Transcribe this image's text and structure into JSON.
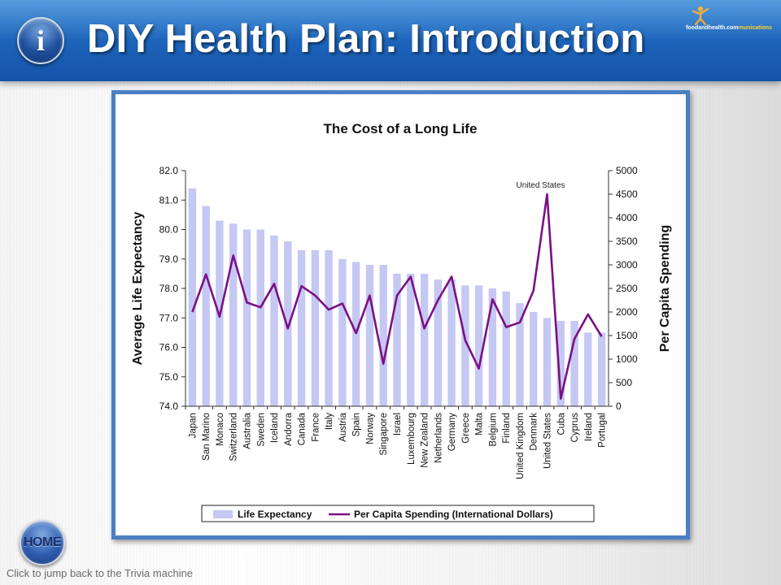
{
  "header": {
    "badge_letter": "i",
    "title": "DIY Health Plan: Introduction",
    "logo_text_a": "foodandhealth.com",
    "logo_text_b": "munications"
  },
  "footer": {
    "home_label": "HOME",
    "hint": "Click to jump back to the Trivia machine"
  },
  "colors": {
    "header": "#1d66bd",
    "frame": "#4a7fc4",
    "bar": "#c5c8f3",
    "line": "#7b1085",
    "logo_figure": "#f2a31c"
  },
  "chart_data": {
    "type": "bar",
    "title": "The Cost of a Long Life",
    "categories": [
      "Japan",
      "San Marino",
      "Monaco",
      "Switzerland",
      "Australia",
      "Sweden",
      "Iceland",
      "Andorra",
      "Canada",
      "France",
      "Italy",
      "Austria",
      "Spain",
      "Norway",
      "Singapore",
      "Israel",
      "Luxembourg",
      "New Zealand",
      "Netherlands",
      "Germany",
      "Greece",
      "Malta",
      "Belgium",
      "Finland",
      "United Kingdom",
      "Denmark",
      "United States",
      "Cuba",
      "Cyprus",
      "Ireland",
      "Portugal"
    ],
    "series": [
      {
        "name": "Life Expectancy",
        "type": "bar",
        "axis": "left",
        "color": "#c5c8f3",
        "values": [
          81.4,
          80.8,
          80.3,
          80.2,
          80.0,
          80.0,
          79.8,
          79.6,
          79.3,
          79.3,
          79.3,
          79.0,
          78.9,
          78.8,
          78.8,
          78.5,
          78.5,
          78.5,
          78.3,
          78.3,
          78.1,
          78.1,
          78.0,
          77.9,
          77.5,
          77.2,
          77.0,
          76.9,
          76.9,
          76.5,
          76.5
        ]
      },
      {
        "name": "Per Capita Spending (International Dollars)",
        "type": "line",
        "axis": "right",
        "color": "#7b1085",
        "values": [
          2000,
          2800,
          1900,
          3200,
          2200,
          2100,
          2600,
          1650,
          2550,
          2350,
          2050,
          2180,
          1550,
          2350,
          900,
          2350,
          2750,
          1650,
          2250,
          2750,
          1400,
          800,
          2270,
          1680,
          1780,
          2450,
          4500,
          160,
          1430,
          1950,
          1480
        ]
      }
    ],
    "ylabel": "Average Life Expectancy",
    "y2label": "Per Capita Spending",
    "ylim": [
      74.0,
      82.0
    ],
    "y2lim": [
      0,
      5000
    ],
    "yticks": [
      "82.0",
      "81.0",
      "80.0",
      "79.0",
      "78.0",
      "77.0",
      "76.0",
      "75.0",
      "74.0"
    ],
    "y2ticks": [
      "5000",
      "4500",
      "4000",
      "3500",
      "3000",
      "2500",
      "2000",
      "1500",
      "1000",
      "500",
      "0"
    ],
    "annotations": [
      {
        "category": "United States",
        "text": "United States"
      }
    ],
    "legend": "bottom",
    "grid": false
  }
}
